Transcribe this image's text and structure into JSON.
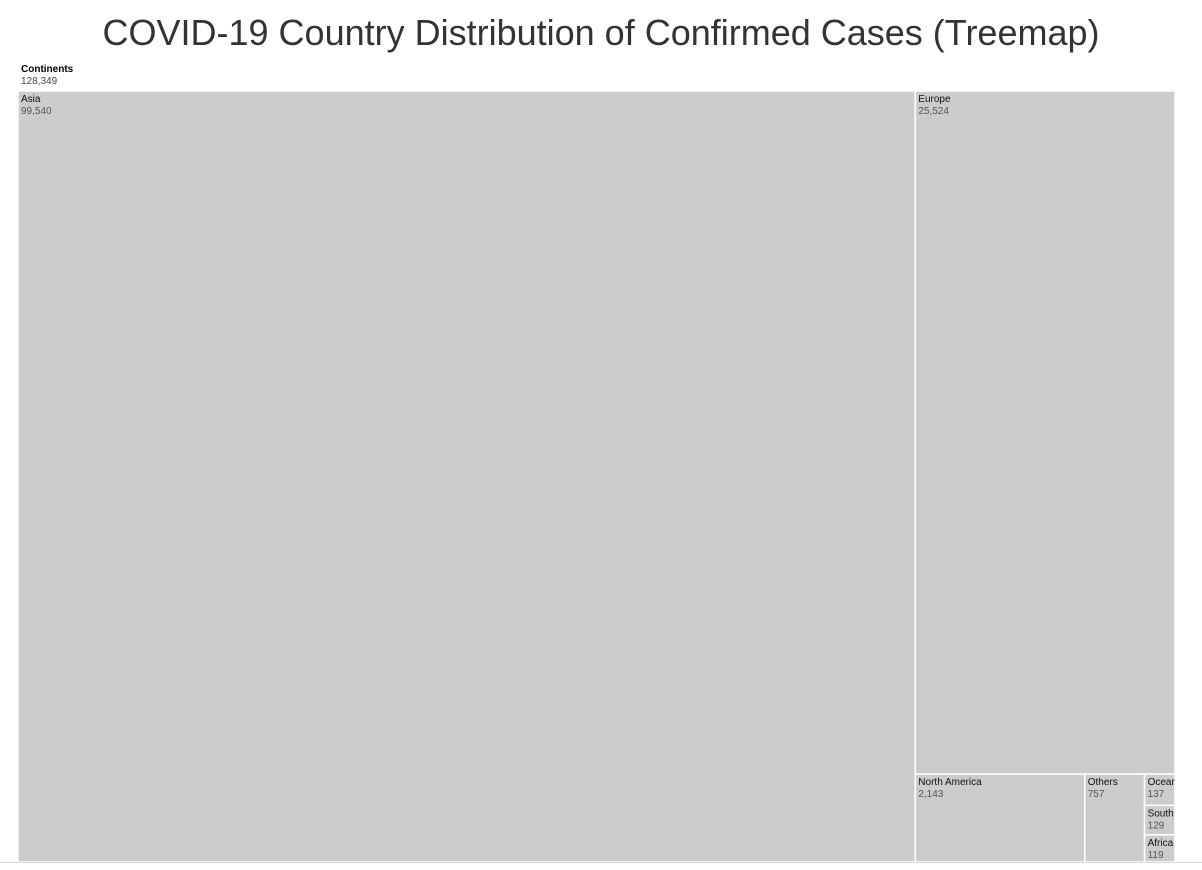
{
  "chart_data": {
    "type": "treemap",
    "title": "COVID-19 Country Distribution of Confirmed Cases (Treemap)",
    "root": {
      "label": "Continents",
      "value_text": "128,349",
      "value": 128349
    },
    "tiles": [
      {
        "label": "Asia",
        "value": 99540,
        "value_text": "99,540"
      },
      {
        "label": "Europe",
        "value": 25524,
        "value_text": "25,524"
      },
      {
        "label": "North America",
        "value": 2143,
        "value_text": "2,143"
      },
      {
        "label": "Others",
        "value": 757,
        "value_text": "757"
      },
      {
        "label": "Oceania",
        "value": 137,
        "value_text": "137"
      },
      {
        "label": "South America",
        "value": 129,
        "value_text": "129"
      },
      {
        "label": "Africa",
        "value": 119,
        "value_text": "119"
      }
    ],
    "colors": {
      "tile_fill": "#cccccc",
      "tile_border": "#ffffff"
    }
  }
}
